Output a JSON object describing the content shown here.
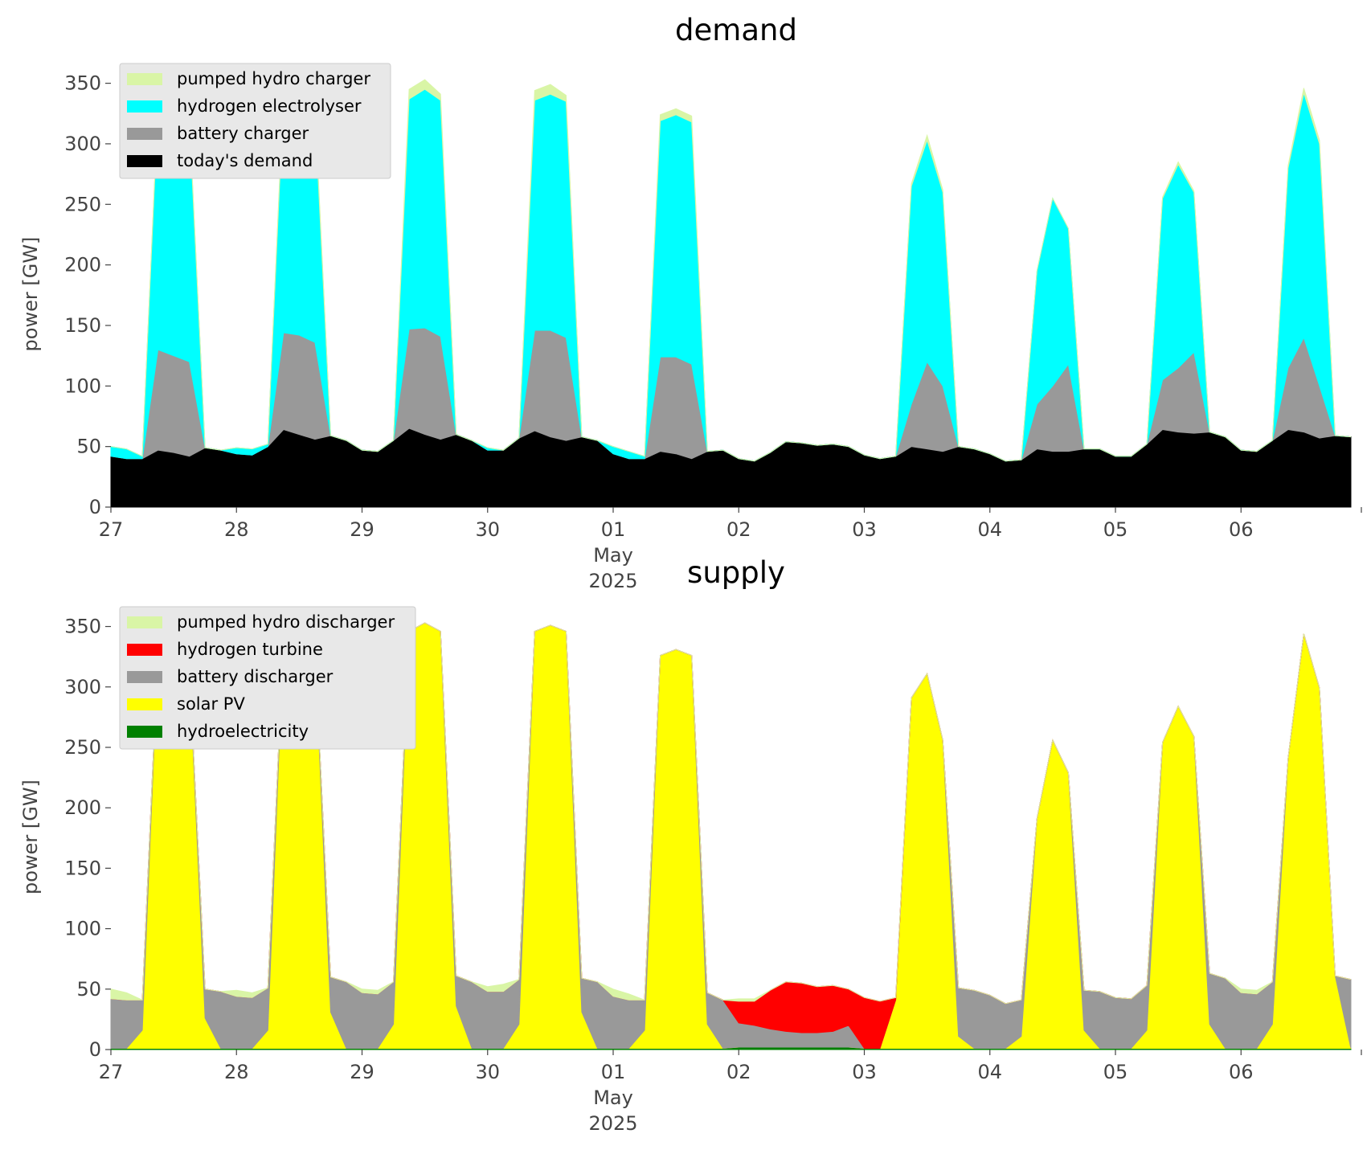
{
  "chart_data": [
    {
      "type": "area",
      "stacked": true,
      "title": "demand",
      "ylabel": "power [GW]",
      "legend": "upper left",
      "x": [
        "2025-04-27T00:00",
        "2025-04-27T03:00",
        "2025-04-27T06:00",
        "2025-04-27T09:00",
        "2025-04-27T12:00",
        "2025-04-27T15:00",
        "2025-04-27T18:00",
        "2025-04-27T21:00",
        "2025-04-28T00:00",
        "2025-04-28T03:00",
        "2025-04-28T06:00",
        "2025-04-28T09:00",
        "2025-04-28T12:00",
        "2025-04-28T15:00",
        "2025-04-28T18:00",
        "2025-04-28T21:00",
        "2025-04-29T00:00",
        "2025-04-29T03:00",
        "2025-04-29T06:00",
        "2025-04-29T09:00",
        "2025-04-29T12:00",
        "2025-04-29T15:00",
        "2025-04-29T18:00",
        "2025-04-29T21:00",
        "2025-04-30T00:00",
        "2025-04-30T03:00",
        "2025-04-30T06:00",
        "2025-04-30T09:00",
        "2025-04-30T12:00",
        "2025-04-30T15:00",
        "2025-04-30T18:00",
        "2025-04-30T21:00",
        "2025-05-01T00:00",
        "2025-05-01T03:00",
        "2025-05-01T06:00",
        "2025-05-01T09:00",
        "2025-05-01T12:00",
        "2025-05-01T15:00",
        "2025-05-01T18:00",
        "2025-05-01T21:00",
        "2025-05-02T00:00",
        "2025-05-02T03:00",
        "2025-05-02T06:00",
        "2025-05-02T09:00",
        "2025-05-02T12:00",
        "2025-05-02T15:00",
        "2025-05-02T18:00",
        "2025-05-02T21:00",
        "2025-05-03T00:00",
        "2025-05-03T03:00",
        "2025-05-03T06:00",
        "2025-05-03T09:00",
        "2025-05-03T12:00",
        "2025-05-03T15:00",
        "2025-05-03T18:00",
        "2025-05-03T21:00",
        "2025-05-04T00:00",
        "2025-05-04T03:00",
        "2025-05-04T06:00",
        "2025-05-04T09:00",
        "2025-05-04T12:00",
        "2025-05-04T15:00",
        "2025-05-04T18:00",
        "2025-05-04T21:00",
        "2025-05-05T00:00",
        "2025-05-05T03:00",
        "2025-05-05T06:00",
        "2025-05-05T09:00",
        "2025-05-05T12:00",
        "2025-05-05T15:00",
        "2025-05-05T18:00",
        "2025-05-05T21:00",
        "2025-05-06T00:00",
        "2025-05-06T03:00",
        "2025-05-06T06:00",
        "2025-05-06T09:00",
        "2025-05-06T12:00",
        "2025-05-06T15:00",
        "2025-05-06T18:00",
        "2025-05-06T21:00"
      ],
      "xlim": [
        "2025-04-27T00:00",
        "2025-05-06T23:00"
      ],
      "xticks": [
        {
          "value": "2025-04-27T00:00",
          "label": "27"
        },
        {
          "value": "2025-04-28T00:00",
          "label": "28"
        },
        {
          "value": "2025-04-29T00:00",
          "label": "29"
        },
        {
          "value": "2025-04-30T00:00",
          "label": "30"
        },
        {
          "value": "2025-05-01T00:00",
          "label": "01\nMay\n2025"
        },
        {
          "value": "2025-05-02T00:00",
          "label": "02"
        },
        {
          "value": "2025-05-03T00:00",
          "label": "03"
        },
        {
          "value": "2025-05-04T00:00",
          "label": "04"
        },
        {
          "value": "2025-05-05T00:00",
          "label": "05"
        },
        {
          "value": "2025-05-06T00:00",
          "label": "06"
        }
      ],
      "ylim": [
        0,
        365
      ],
      "yticks": [
        0,
        50,
        100,
        150,
        200,
        250,
        300,
        350
      ],
      "series": [
        {
          "name": "pumped hydro charger",
          "color": "#d9f5a6",
          "values": [
            0,
            0,
            0,
            3,
            3,
            3,
            0,
            0,
            0,
            0,
            0,
            5,
            5,
            5,
            0,
            0,
            0,
            0,
            0,
            8,
            8,
            5,
            0,
            0,
            0,
            0,
            0,
            8,
            8,
            5,
            0,
            0,
            0,
            0,
            0,
            5,
            5,
            5,
            0,
            0,
            0,
            0,
            0,
            0,
            0,
            0,
            0,
            0,
            0,
            0,
            0,
            2,
            4,
            2,
            0,
            0,
            0,
            0,
            0,
            0,
            0,
            0,
            0,
            0,
            0,
            0,
            0,
            1,
            2,
            1,
            0,
            0,
            0,
            0,
            0,
            2,
            4,
            3,
            0,
            0
          ]
        },
        {
          "name": "hydrogen electrolyser",
          "color": "#00ffff",
          "values": [
            8,
            8,
            2,
            200,
            205,
            200,
            0,
            0,
            5,
            5,
            2,
            195,
            195,
            190,
            0,
            0,
            0,
            0,
            0,
            190,
            197,
            195,
            0,
            0,
            2,
            0,
            0,
            190,
            195,
            195,
            0,
            0,
            6,
            6,
            2,
            195,
            200,
            200,
            0,
            0,
            0,
            0,
            0,
            0,
            0,
            0,
            0,
            0,
            0,
            0,
            0,
            180,
            183,
            160,
            0,
            0,
            0,
            0,
            0,
            110,
            155,
            112,
            0,
            0,
            0,
            0,
            0,
            150,
            168,
            132,
            0,
            0,
            0,
            0,
            0,
            165,
            202,
            200,
            0,
            0
          ]
        },
        {
          "name": "battery charger",
          "color": "#999999",
          "values": [
            0,
            0,
            0,
            83,
            80,
            78,
            0,
            0,
            0,
            0,
            0,
            80,
            82,
            80,
            0,
            0,
            0,
            0,
            0,
            82,
            88,
            85,
            0,
            0,
            0,
            0,
            0,
            83,
            88,
            85,
            0,
            0,
            0,
            0,
            0,
            78,
            80,
            78,
            0,
            0,
            0,
            0,
            0,
            0,
            0,
            0,
            0,
            0,
            0,
            0,
            0,
            35,
            72,
            54,
            0,
            0,
            0,
            0,
            0,
            37,
            54,
            72,
            0,
            0,
            0,
            0,
            0,
            41,
            53,
            67,
            0,
            0,
            0,
            0,
            0,
            51,
            78,
            43,
            0,
            0
          ]
        },
        {
          "name": "today's demand",
          "color": "#000000",
          "values": [
            42,
            40,
            40,
            47,
            45,
            42,
            49,
            47,
            44,
            43,
            50,
            64,
            60,
            56,
            59,
            55,
            47,
            46,
            55,
            65,
            60,
            56,
            60,
            55,
            47,
            47,
            57,
            63,
            58,
            55,
            58,
            55,
            44,
            40,
            40,
            46,
            44,
            40,
            46,
            47,
            40,
            38,
            45,
            54,
            53,
            51,
            52,
            50,
            43,
            40,
            42,
            50,
            48,
            46,
            50,
            48,
            44,
            38,
            39,
            48,
            46,
            46,
            48,
            48,
            42,
            42,
            52,
            64,
            62,
            61,
            62,
            58,
            47,
            46,
            55,
            64,
            62,
            57,
            59,
            58
          ]
        }
      ]
    },
    {
      "type": "area",
      "stacked": true,
      "title": "supply",
      "ylabel": "power [GW]",
      "legend": "upper left",
      "x": [
        "2025-04-27T00:00",
        "2025-04-27T03:00",
        "2025-04-27T06:00",
        "2025-04-27T09:00",
        "2025-04-27T12:00",
        "2025-04-27T15:00",
        "2025-04-27T18:00",
        "2025-04-27T21:00",
        "2025-04-28T00:00",
        "2025-04-28T03:00",
        "2025-04-28T06:00",
        "2025-04-28T09:00",
        "2025-04-28T12:00",
        "2025-04-28T15:00",
        "2025-04-28T18:00",
        "2025-04-28T21:00",
        "2025-04-29T00:00",
        "2025-04-29T03:00",
        "2025-04-29T06:00",
        "2025-04-29T09:00",
        "2025-04-29T12:00",
        "2025-04-29T15:00",
        "2025-04-29T18:00",
        "2025-04-29T21:00",
        "2025-04-30T00:00",
        "2025-04-30T03:00",
        "2025-04-30T06:00",
        "2025-04-30T09:00",
        "2025-04-30T12:00",
        "2025-04-30T15:00",
        "2025-04-30T18:00",
        "2025-04-30T21:00",
        "2025-05-01T00:00",
        "2025-05-01T03:00",
        "2025-05-01T06:00",
        "2025-05-01T09:00",
        "2025-05-01T12:00",
        "2025-05-01T15:00",
        "2025-05-01T18:00",
        "2025-05-01T21:00",
        "2025-05-02T00:00",
        "2025-05-02T03:00",
        "2025-05-02T06:00",
        "2025-05-02T09:00",
        "2025-05-02T12:00",
        "2025-05-02T15:00",
        "2025-05-02T18:00",
        "2025-05-02T21:00",
        "2025-05-03T00:00",
        "2025-05-03T03:00",
        "2025-05-03T06:00",
        "2025-05-03T09:00",
        "2025-05-03T12:00",
        "2025-05-03T15:00",
        "2025-05-03T18:00",
        "2025-05-03T21:00",
        "2025-05-04T00:00",
        "2025-05-04T03:00",
        "2025-05-04T06:00",
        "2025-05-04T09:00",
        "2025-05-04T12:00",
        "2025-05-04T15:00",
        "2025-05-04T18:00",
        "2025-05-04T21:00",
        "2025-05-05T00:00",
        "2025-05-05T03:00",
        "2025-05-05T06:00",
        "2025-05-05T09:00",
        "2025-05-05T12:00",
        "2025-05-05T15:00",
        "2025-05-05T18:00",
        "2025-05-05T21:00",
        "2025-05-06T00:00",
        "2025-05-06T03:00",
        "2025-05-06T06:00",
        "2025-05-06T09:00",
        "2025-05-06T12:00",
        "2025-05-06T15:00",
        "2025-05-06T18:00",
        "2025-05-06T21:00"
      ],
      "xlim": [
        "2025-04-27T00:00",
        "2025-05-06T23:00"
      ],
      "xticks": [
        {
          "value": "2025-04-27T00:00",
          "label": "27"
        },
        {
          "value": "2025-04-28T00:00",
          "label": "28"
        },
        {
          "value": "2025-04-29T00:00",
          "label": "29"
        },
        {
          "value": "2025-04-30T00:00",
          "label": "30"
        },
        {
          "value": "2025-05-01T00:00",
          "label": "01\nMay\n2025"
        },
        {
          "value": "2025-05-02T00:00",
          "label": "02"
        },
        {
          "value": "2025-05-03T00:00",
          "label": "03"
        },
        {
          "value": "2025-05-04T00:00",
          "label": "04"
        },
        {
          "value": "2025-05-05T00:00",
          "label": "05"
        },
        {
          "value": "2025-05-06T00:00",
          "label": "06"
        }
      ],
      "ylim": [
        0,
        365
      ],
      "yticks": [
        0,
        50,
        100,
        150,
        200,
        250,
        300,
        350
      ],
      "series": [
        {
          "name": "pumped hydro discharger",
          "color": "#d9f5a6",
          "values": [
            8,
            6,
            0,
            0,
            0,
            0,
            0,
            0,
            5,
            4,
            0,
            0,
            0,
            0,
            0,
            0,
            3,
            3,
            0,
            0,
            0,
            0,
            0,
            0,
            4,
            6,
            0,
            0,
            0,
            0,
            0,
            0,
            6,
            5,
            0,
            0,
            0,
            0,
            0,
            0,
            2,
            2,
            0,
            0,
            0,
            0,
            0,
            0,
            0,
            0,
            0,
            0,
            0,
            0,
            0,
            0,
            0,
            0,
            0,
            0,
            0,
            0,
            0,
            0,
            0,
            0,
            0,
            0,
            0,
            0,
            0,
            0,
            3,
            3,
            0,
            0,
            0,
            0,
            0,
            0
          ]
        },
        {
          "name": "hydrogen turbine",
          "color": "#ff0000",
          "values": [
            0,
            0,
            0,
            0,
            0,
            0,
            0,
            0,
            0,
            0,
            0,
            0,
            0,
            0,
            0,
            0,
            0,
            0,
            0,
            0,
            0,
            0,
            0,
            0,
            0,
            0,
            0,
            0,
            0,
            0,
            0,
            0,
            0,
            0,
            0,
            0,
            0,
            0,
            0,
            0,
            18,
            20,
            32,
            41,
            41,
            38,
            38,
            30,
            42,
            39,
            2,
            0,
            0,
            0,
            0,
            0,
            0,
            0,
            0,
            0,
            0,
            0,
            0,
            0,
            0,
            0,
            0,
            0,
            0,
            0,
            0,
            0,
            0,
            0,
            0,
            0,
            0,
            0,
            0,
            0
          ]
        },
        {
          "name": "battery discharger",
          "color": "#999999",
          "values": [
            41,
            40,
            25,
            0,
            0,
            0,
            24,
            47,
            43,
            42,
            35,
            0,
            0,
            0,
            29,
            55,
            46,
            45,
            35,
            0,
            0,
            0,
            25,
            55,
            47,
            47,
            37,
            0,
            0,
            0,
            28,
            55,
            43,
            40,
            25,
            0,
            0,
            0,
            26,
            40,
            20,
            18,
            15,
            13,
            12,
            12,
            13,
            18,
            0,
            0,
            0,
            0,
            0,
            0,
            40,
            48,
            44,
            37,
            30,
            0,
            0,
            0,
            33,
            47,
            42,
            41,
            37,
            0,
            0,
            0,
            42,
            58,
            46,
            45,
            35,
            0,
            0,
            0,
            0,
            57
          ]
        },
        {
          "name": "solar PV",
          "color": "#ffff00",
          "values": [
            0,
            0,
            15,
            329,
            335,
            315,
            25,
            0,
            0,
            0,
            15,
            340,
            345,
            330,
            30,
            0,
            0,
            0,
            20,
            345,
            352,
            345,
            35,
            0,
            0,
            0,
            20,
            345,
            350,
            345,
            30,
            0,
            0,
            0,
            15,
            325,
            330,
            325,
            20,
            0,
            0,
            0,
            0,
            0,
            0,
            0,
            0,
            0,
            0,
            0,
            40,
            290,
            310,
            255,
            10,
            0,
            0,
            0,
            10,
            190,
            255,
            228,
            15,
            0,
            0,
            0,
            15,
            253,
            283,
            258,
            20,
            0,
            0,
            0,
            20,
            240,
            343,
            298,
            60,
            0
          ]
        },
        {
          "name": "hydroelectricity",
          "color": "#008000",
          "values": [
            1,
            1,
            1,
            1,
            1,
            1,
            1,
            1,
            1,
            1,
            1,
            1,
            1,
            1,
            1,
            1,
            1,
            1,
            1,
            1,
            1,
            1,
            1,
            1,
            1,
            1,
            1,
            1,
            1,
            1,
            1,
            1,
            1,
            1,
            1,
            1,
            1,
            1,
            1,
            1,
            2,
            2,
            2,
            2,
            2,
            2,
            2,
            2,
            1,
            1,
            1,
            1,
            1,
            1,
            1,
            1,
            1,
            1,
            1,
            1,
            1,
            1,
            1,
            1,
            1,
            1,
            1,
            1,
            1,
            1,
            1,
            1,
            1,
            1,
            1,
            1,
            1,
            1,
            1,
            1
          ]
        }
      ]
    }
  ]
}
